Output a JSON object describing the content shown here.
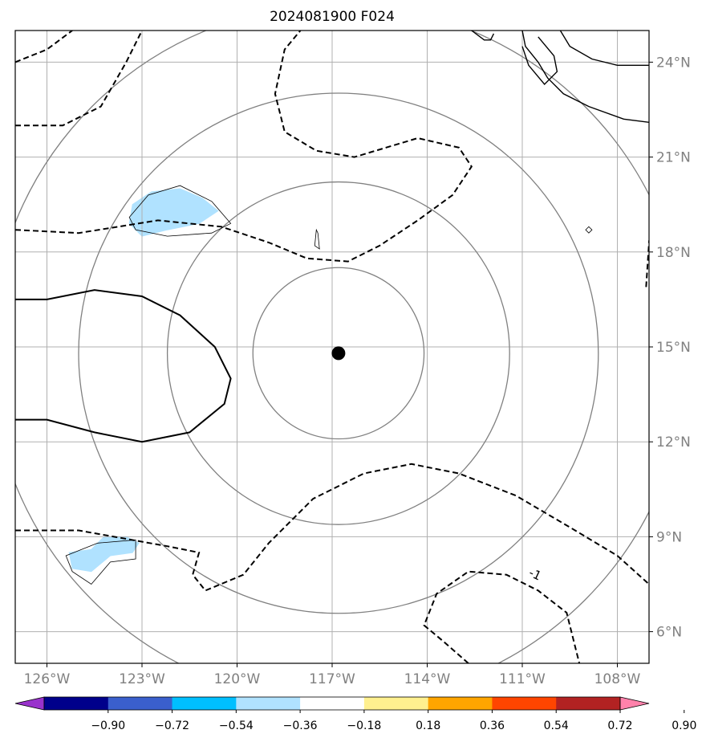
{
  "chart_data": {
    "type": "map",
    "title": "2024081900 F024",
    "projection": "lat-lon",
    "xlim_lon": [
      -127,
      -107
    ],
    "ylim_lat": [
      5,
      25
    ],
    "x_ticks": [
      -126,
      -123,
      -120,
      -117,
      -114,
      -111,
      -108
    ],
    "x_tick_labels": [
      "126°W",
      "123°W",
      "120°W",
      "117°W",
      "114°W",
      "111°W",
      "108°W"
    ],
    "y_ticks": [
      6,
      9,
      12,
      15,
      18,
      21,
      24
    ],
    "y_tick_labels": [
      "6°N",
      "9°N",
      "12°N",
      "15°N",
      "18°N",
      "21°N",
      "24°N"
    ],
    "grid": true,
    "storm_center": {
      "lon": -116.8,
      "lat": 14.8
    },
    "range_rings_deg": [
      2.7,
      5.4,
      8.2,
      11.0
    ],
    "contour_labels": [
      {
        "text": "-1",
        "lon": -110.6,
        "lat": 7.8
      }
    ],
    "colorbar": {
      "orientation": "horizontal",
      "extend": "both",
      "levels": [
        -0.9,
        -0.72,
        -0.54,
        -0.36,
        -0.18,
        0.18,
        0.36,
        0.54,
        0.72,
        0.9
      ],
      "tick_labels": [
        "−0.90",
        "−0.72",
        "−0.54",
        "−0.36",
        "−0.18",
        "0.18",
        "0.36",
        "0.54",
        "0.72",
        "0.90"
      ],
      "colors": [
        "#9932cc",
        "#00008b",
        "#3a5fcd",
        "#00bfff",
        "#b0e2ff",
        "#ffffff",
        "#fff08f",
        "#ffa500",
        "#ff4500",
        "#b22222",
        "#ff82ab"
      ]
    },
    "shaded_regions": [
      {
        "name": "blob-north",
        "level": -0.36,
        "points": [
          [
            -123.3,
            19.5
          ],
          [
            -122.7,
            19.9
          ],
          [
            -121.8,
            20.0
          ],
          [
            -121.1,
            19.7
          ],
          [
            -120.6,
            19.3
          ],
          [
            -121.2,
            18.9
          ],
          [
            -122.2,
            18.7
          ],
          [
            -123.0,
            18.5
          ],
          [
            -123.4,
            18.9
          ]
        ]
      },
      {
        "name": "blob-south",
        "level": -0.36,
        "points": [
          [
            -125.3,
            8.5
          ],
          [
            -124.6,
            8.6
          ],
          [
            -124.2,
            9.0
          ],
          [
            -123.5,
            9.0
          ],
          [
            -123.1,
            8.8
          ],
          [
            -123.3,
            8.5
          ],
          [
            -124.0,
            8.4
          ],
          [
            -124.6,
            7.9
          ],
          [
            -125.2,
            8.0
          ]
        ]
      },
      {
        "name": "blob-small",
        "level": -0.18,
        "points": [
          [
            -117.5,
            18.6
          ],
          [
            -117.3,
            18.3
          ],
          [
            -117.4,
            18.0
          ],
          [
            -117.7,
            18.0
          ],
          [
            -117.7,
            18.3
          ]
        ]
      }
    ],
    "coastlines": [
      [
        [
          -112.6,
          25.0
        ],
        [
          -112.2,
          24.7
        ],
        [
          -112.0,
          24.7
        ],
        [
          -111.9,
          24.9
        ]
      ],
      [
        [
          -111.0,
          25.0
        ],
        [
          -110.9,
          24.5
        ],
        [
          -110.5,
          24.0
        ],
        [
          -110.2,
          23.5
        ],
        [
          -109.7,
          23.0
        ],
        [
          -108.9,
          22.6
        ],
        [
          -107.8,
          22.2
        ],
        [
          -107.0,
          22.1
        ]
      ],
      [
        [
          -109.8,
          25.0
        ],
        [
          -109.5,
          24.5
        ],
        [
          -108.8,
          24.1
        ],
        [
          -108.0,
          23.9
        ],
        [
          -107.0,
          23.9
        ]
      ],
      [
        [
          -110.5,
          24.8
        ],
        [
          -110.0,
          24.2
        ],
        [
          -109.9,
          23.7
        ],
        [
          -110.3,
          23.3
        ],
        [
          -110.8,
          23.9
        ],
        [
          -111.0,
          24.5
        ]
      ]
    ],
    "solid_contours": [
      [
        [
          -127,
          16.5
        ],
        [
          -126.0,
          16.5
        ],
        [
          -124.5,
          16.8
        ],
        [
          -123.0,
          16.6
        ],
        [
          -121.8,
          16.0
        ],
        [
          -120.7,
          15.0
        ],
        [
          -120.2,
          14.0
        ],
        [
          -120.4,
          13.2
        ],
        [
          -121.5,
          12.3
        ],
        [
          -123.0,
          12.0
        ],
        [
          -124.5,
          12.3
        ],
        [
          -126.0,
          12.7
        ],
        [
          -127,
          12.7
        ]
      ]
    ],
    "dashed_contours": [
      [
        [
          -127,
          24.0
        ],
        [
          -126.0,
          24.4
        ],
        [
          -125.2,
          25.0
        ]
      ],
      [
        [
          -127,
          22.0
        ],
        [
          -125.5,
          22.0
        ],
        [
          -124.3,
          22.6
        ],
        [
          -123.5,
          24.0
        ],
        [
          -123.0,
          25.0
        ]
      ],
      [
        [
          -127,
          18.7
        ],
        [
          -125.0,
          18.6
        ],
        [
          -122.5,
          19.0
        ],
        [
          -120.5,
          18.8
        ],
        [
          -119.0,
          18.3
        ],
        [
          -117.8,
          17.8
        ],
        [
          -116.5,
          17.7
        ],
        [
          -115.5,
          18.2
        ],
        [
          -114.3,
          19.0
        ],
        [
          -113.2,
          19.8
        ],
        [
          -112.6,
          20.7
        ],
        [
          -113.0,
          21.3
        ],
        [
          -114.3,
          21.6
        ],
        [
          -116.3,
          21.0
        ],
        [
          -117.5,
          21.2
        ],
        [
          -118.5,
          21.8
        ],
        [
          -118.8,
          23.0
        ],
        [
          -118.5,
          24.4
        ],
        [
          -118.0,
          25.0
        ]
      ],
      [
        [
          -127,
          9.2
        ],
        [
          -125.0,
          9.2
        ],
        [
          -122.2,
          8.7
        ],
        [
          -121.2,
          8.5
        ],
        [
          -121.4,
          7.8
        ],
        [
          -121.0,
          7.3
        ],
        [
          -119.8,
          7.8
        ],
        [
          -119.0,
          8.8
        ],
        [
          -117.6,
          10.2
        ],
        [
          -116.0,
          11.0
        ],
        [
          -114.5,
          11.3
        ],
        [
          -113.0,
          11.0
        ],
        [
          -111.2,
          10.3
        ],
        [
          -109.5,
          9.3
        ],
        [
          -108.0,
          8.4
        ],
        [
          -107,
          7.5
        ]
      ],
      [
        [
          -107,
          17.7
        ],
        [
          -106.8,
          18.0
        ],
        [
          -107.0,
          18.3
        ],
        [
          -107.1,
          16.8
        ]
      ],
      [
        [
          -112.7,
          5.0
        ],
        [
          -113.5,
          5.7
        ],
        [
          -114.1,
          6.2
        ],
        [
          -113.7,
          7.2
        ],
        [
          -112.7,
          7.9
        ],
        [
          -111.5,
          7.8
        ],
        [
          -110.5,
          7.3
        ],
        [
          -109.6,
          6.6
        ],
        [
          -109.2,
          5.0
        ]
      ]
    ],
    "thin_outlines": [
      [
        [
          -123.4,
          19.1
        ],
        [
          -122.8,
          19.8
        ],
        [
          -121.8,
          20.1
        ],
        [
          -120.8,
          19.6
        ],
        [
          -120.2,
          18.9
        ],
        [
          -120.8,
          18.6
        ],
        [
          -122.2,
          18.5
        ],
        [
          -123.2,
          18.7
        ]
      ],
      [
        [
          -125.4,
          8.4
        ],
        [
          -124.4,
          8.8
        ],
        [
          -123.2,
          8.9
        ],
        [
          -123.2,
          8.3
        ],
        [
          -124.0,
          8.2
        ],
        [
          -124.6,
          7.5
        ],
        [
          -125.2,
          7.9
        ]
      ],
      [
        [
          -117.5,
          18.7
        ],
        [
          -117.55,
          18.2
        ],
        [
          -117.4,
          18.1
        ],
        [
          -117.45,
          18.6
        ]
      ],
      [
        [
          -109.0,
          18.7
        ],
        [
          -108.9,
          18.6
        ],
        [
          -108.8,
          18.7
        ],
        [
          -108.9,
          18.8
        ]
      ]
    ]
  }
}
